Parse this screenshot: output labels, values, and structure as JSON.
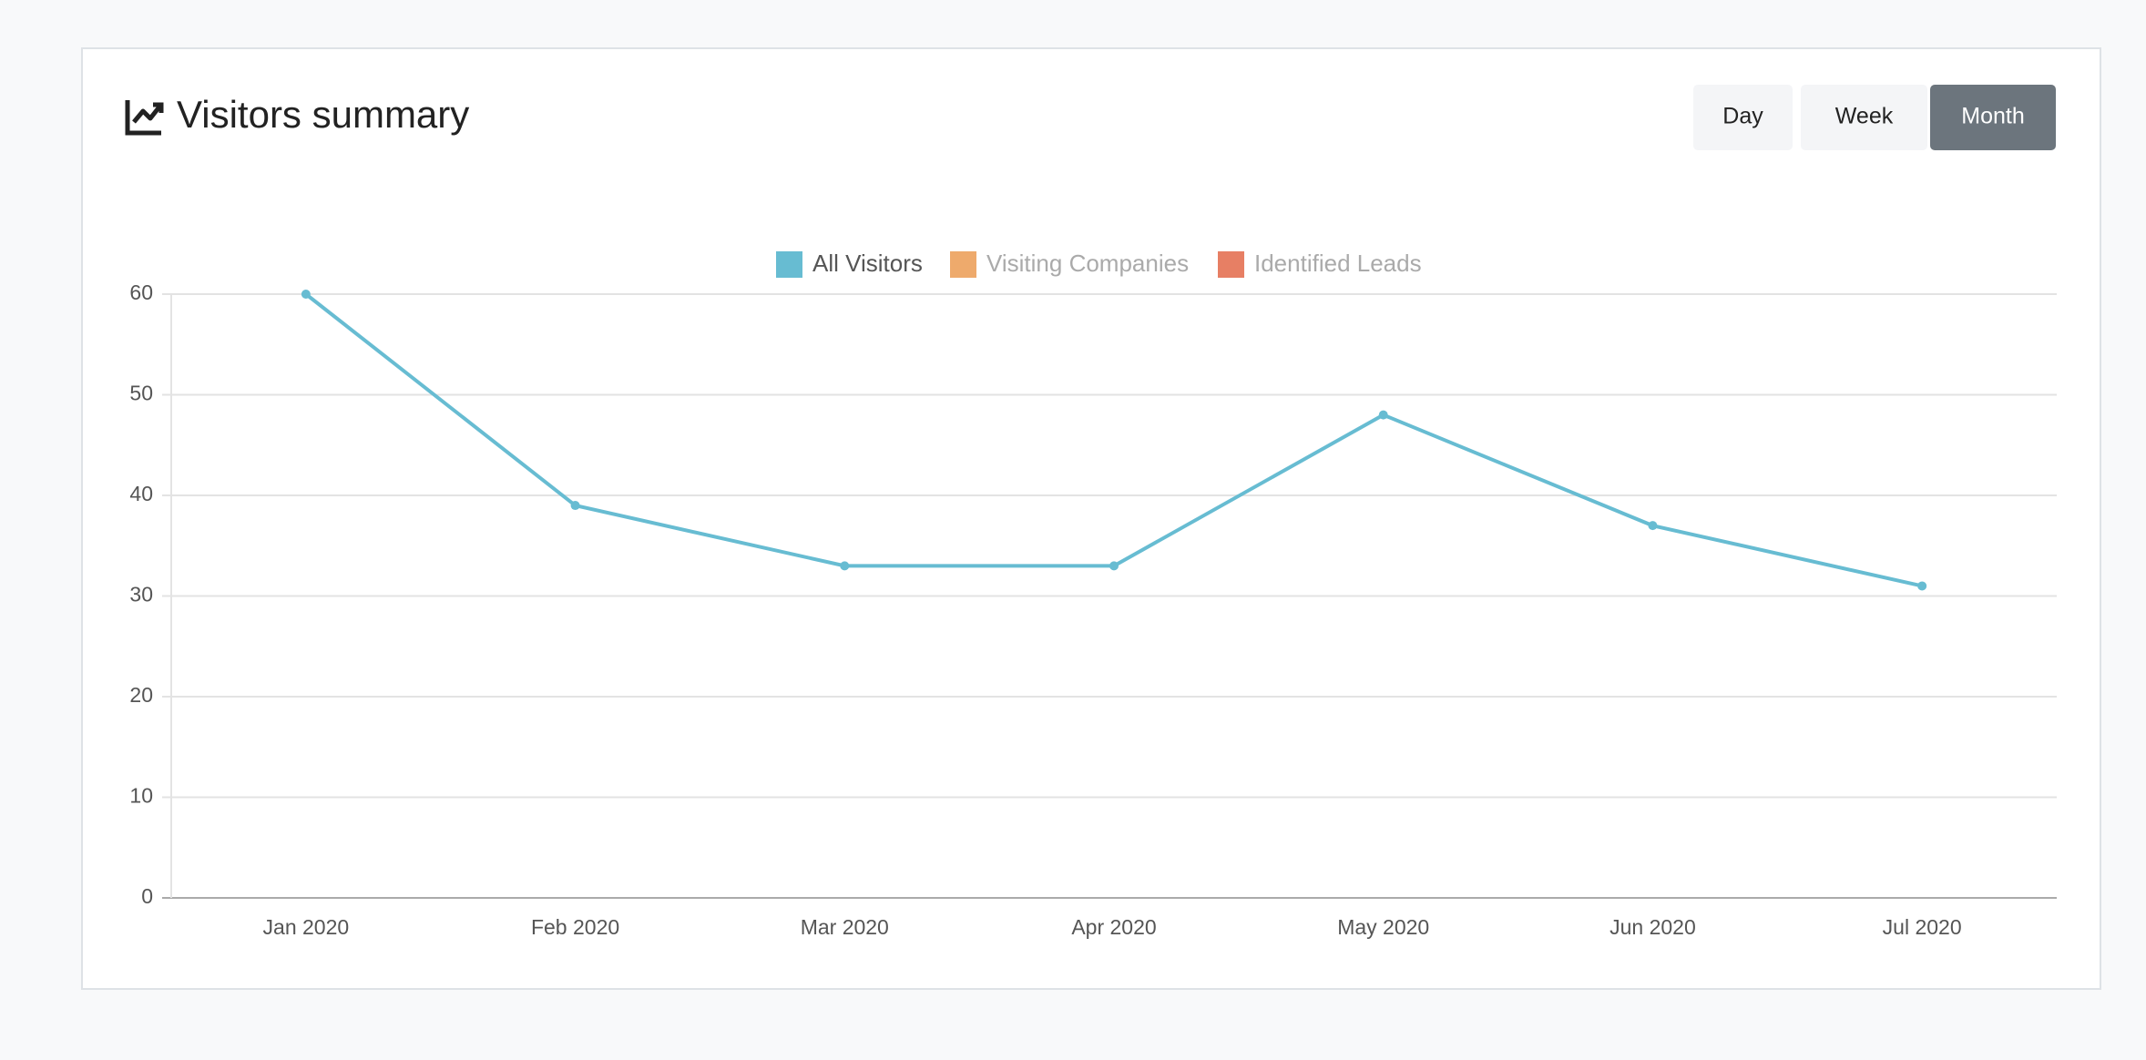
{
  "header": {
    "title": "Visitors summary",
    "buttons": [
      "Day",
      "Week",
      "Month"
    ],
    "active_button": "Month"
  },
  "chart_data": {
    "type": "line",
    "categories": [
      "Jan 2020",
      "Feb 2020",
      "Mar 2020",
      "Apr 2020",
      "May 2020",
      "Jun 2020",
      "Jul 2020"
    ],
    "series": [
      {
        "name": "All Visitors",
        "color": "#67bcd2",
        "values": [
          60,
          39,
          33,
          33,
          48,
          37,
          31
        ]
      },
      {
        "name": "Visiting Companies",
        "color": "#eeaa6c",
        "hidden": true
      },
      {
        "name": "Identified Leads",
        "color": "#e77f64",
        "hidden": true
      }
    ],
    "ylim": [
      0,
      60
    ],
    "yticks": [
      0,
      10,
      20,
      30,
      40,
      50,
      60
    ],
    "grid": true,
    "legend": "top"
  }
}
